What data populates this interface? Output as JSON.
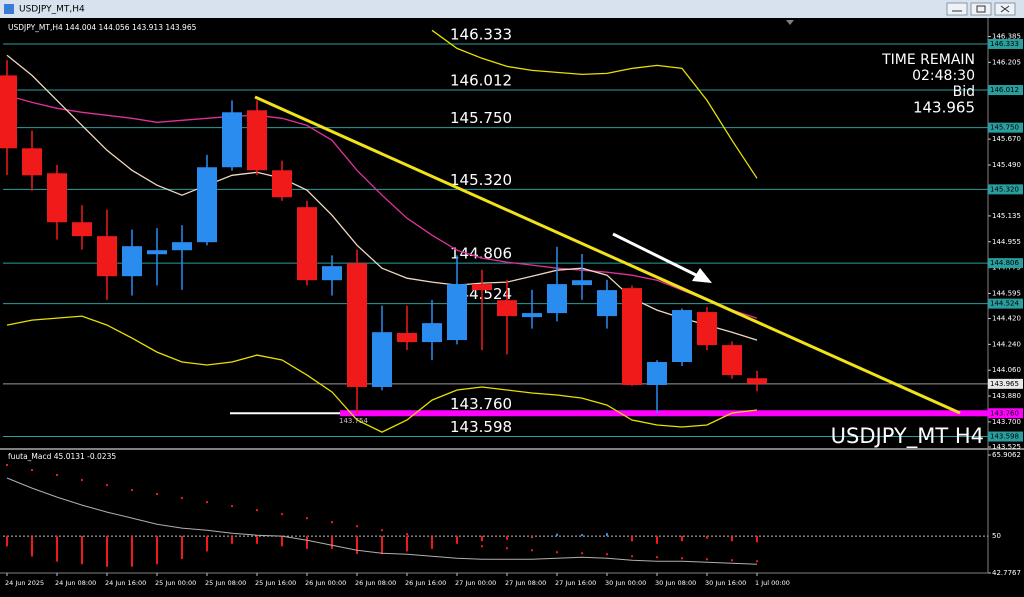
{
  "window_title": "USDJPY_MT,H4",
  "chart_data": [
    {
      "type": "candlestick",
      "title": "USDJPY_MT,H4 144.004 144.056 143.913 143.965",
      "categories": [
        "24 Jun 2025",
        null,
        "24 Jun 08:00",
        null,
        "24 Jun 16:00",
        null,
        "25 Jun 00:00",
        null,
        "25 Jun 08:00",
        null,
        "25 Jun 16:00",
        null,
        "26 Jun 00:00",
        null,
        "26 Jun 08:00",
        null,
        "26 Jun 16:00",
        null,
        "27 Jun 00:00",
        null,
        "27 Jun 08:00",
        null,
        "27 Jun 16:00",
        null,
        "30 Jun 00:00",
        null,
        "30 Jun 08:00",
        null,
        "30 Jun 16:00",
        null,
        "1 Jul 00:00"
      ],
      "open": [
        146.114,
        145.606,
        145.432,
        145.091,
        144.994,
        144.715,
        144.868,
        144.896,
        144.952,
        145.474,
        145.871,
        145.453,
        145.196,
        144.687,
        144.806,
        143.943,
        144.319,
        144.256,
        144.27,
        144.66,
        144.548,
        144.43,
        144.458,
        144.653,
        144.437,
        144.632,
        143.957,
        144.117,
        144.465,
        144.235,
        144.004
      ],
      "high": [
        146.22,
        145.73,
        145.49,
        145.21,
        145.18,
        145.04,
        145.05,
        145.07,
        145.56,
        145.94,
        145.94,
        145.52,
        145.24,
        144.86,
        144.9,
        144.51,
        144.51,
        144.55,
        144.86,
        144.76,
        144.69,
        144.62,
        144.92,
        144.87,
        144.69,
        144.65,
        144.13,
        144.49,
        144.5,
        144.26,
        144.056
      ],
      "low": [
        145.42,
        145.31,
        144.97,
        144.9,
        144.55,
        144.58,
        144.65,
        144.62,
        144.93,
        145.45,
        145.42,
        145.24,
        144.65,
        144.58,
        143.754,
        143.92,
        144.2,
        144.13,
        144.24,
        144.2,
        144.17,
        144.35,
        144.4,
        144.55,
        144.35,
        143.95,
        143.76,
        144.09,
        144.2,
        144.0,
        143.913
      ],
      "close": [
        145.606,
        145.418,
        145.091,
        144.994,
        144.715,
        144.924,
        144.896,
        144.952,
        145.474,
        145.857,
        145.453,
        145.265,
        144.687,
        144.785,
        143.943,
        144.325,
        144.256,
        144.388,
        144.66,
        144.618,
        144.437,
        144.458,
        144.66,
        144.687,
        144.618,
        143.957,
        144.117,
        144.479,
        144.235,
        144.026,
        143.965
      ],
      "up_color": "#2b8cf0",
      "down_color": "#f01a1a",
      "overlays": [
        {
          "color": "#e8e000",
          "values": [
            null,
            null,
            null,
            null,
            null,
            null,
            null,
            null,
            null,
            null,
            null,
            null,
            null,
            null,
            null,
            null,
            null,
            146.428,
            146.302,
            146.233,
            146.177,
            146.149,
            146.135,
            146.121,
            146.128,
            146.163,
            146.184,
            146.163,
            145.94,
            145.662,
            145.397
          ]
        },
        {
          "color": "#e8e000",
          "values": [
            144.374,
            144.409,
            144.423,
            144.437,
            144.374,
            144.284,
            144.186,
            144.117,
            144.096,
            144.117,
            144.165,
            144.131,
            144.026,
            143.908,
            143.713,
            143.629,
            143.713,
            143.852,
            143.922,
            143.943,
            143.922,
            143.901,
            143.887,
            143.866,
            143.817,
            143.713,
            143.678,
            143.664,
            143.678,
            143.762,
            143.783
          ]
        },
        {
          "color": "#e0309a",
          "values": [
            145.975,
            145.926,
            145.885,
            145.857,
            145.836,
            145.815,
            145.787,
            145.801,
            145.815,
            145.829,
            145.836,
            145.815,
            145.766,
            145.662,
            145.453,
            145.279,
            145.119,
            145.001,
            144.896,
            144.841,
            144.813,
            144.792,
            144.771,
            144.757,
            144.743,
            144.722,
            144.687,
            144.618,
            144.548,
            144.479,
            144.423
          ]
        },
        {
          "color": "#f0d8c0",
          "values": [
            146.254,
            146.114,
            145.94,
            145.766,
            145.592,
            145.453,
            145.349,
            145.279,
            145.349,
            145.418,
            145.439,
            145.397,
            145.314,
            145.14,
            144.931,
            144.771,
            144.701,
            144.674,
            144.653,
            144.667,
            144.674,
            144.715,
            144.757,
            144.771,
            144.722,
            144.562,
            144.479,
            144.423,
            144.374,
            144.325,
            144.27
          ]
        }
      ],
      "levels": [
        {
          "value": 146.333,
          "color": "#2a9e9e"
        },
        {
          "value": 146.012,
          "color": "#2a9e9e"
        },
        {
          "value": 145.75,
          "label": "145.750",
          "color": "#2a9e9e"
        },
        {
          "value": 145.32,
          "label": "145.320",
          "color": "#2a9e9e"
        },
        {
          "value": 144.806,
          "color": "#2a9e9e"
        },
        {
          "value": 144.524,
          "color": "#2a9e9e"
        },
        {
          "value": 143.76,
          "label": "143.760",
          "color": "#ff00ff"
        },
        {
          "value": 143.598,
          "color": "#2a9e9e"
        }
      ],
      "bid": 143.965,
      "bid_label": "Bid",
      "time_remain_label": "TIME REMAIN",
      "time_remain": "02:48:30",
      "watermark": "USDJPY_MT H4",
      "ylim": [
        143.525,
        146.5
      ],
      "yticks": [
        146.385,
        146.205,
        {
          "value": 145.67,
          "label": "145.670"
        },
        {
          "value": 145.49,
          "label": "145.490"
        },
        145.135,
        144.955,
        144.775,
        144.595,
        {
          "value": 144.42,
          "label": "144.420"
        },
        {
          "value": 144.24,
          "label": "144.240"
        },
        {
          "value": 144.06,
          "label": "144.060"
        },
        {
          "value": 143.88,
          "label": "143.880"
        },
        {
          "value": 143.7,
          "label": "143.700"
        },
        143.525
      ]
    },
    {
      "type": "macd",
      "title": "fuuta_Macd 45.0131 -0.0235",
      "histogram": [
        48,
        46,
        45,
        44.5,
        44,
        44,
        44.5,
        45.5,
        47,
        48.5,
        48.5,
        48,
        47.5,
        47.5,
        46.5,
        46.5,
        47,
        47.5,
        48.5,
        49,
        49.3,
        49.6,
        50.5,
        50.4,
        50.6,
        49,
        48.5,
        49,
        49.5,
        49,
        48.8
      ],
      "signal": [
        63.94,
        62.96,
        61.98,
        61.0,
        60.01,
        59.03,
        58.25,
        57.46,
        56.67,
        55.89,
        55.1,
        54.32,
        53.53,
        52.75,
        51.96,
        51.17,
        50.39,
        49.6,
        48.81,
        48.03,
        47.64,
        47.24,
        46.85,
        46.65,
        46.46,
        46.07,
        45.87,
        45.67,
        45.47,
        45.28,
        45.08
      ],
      "line": [
        61.39,
        59.42,
        57.65,
        56.08,
        54.71,
        53.53,
        52.35,
        51.57,
        51.17,
        50.58,
        50.19,
        50.0,
        49.21,
        48.23,
        47.24,
        46.65,
        46.46,
        46.07,
        45.67,
        45.47,
        45.47,
        45.47,
        45.67,
        45.87,
        45.67,
        45.28,
        45.08,
        45.08,
        44.89,
        44.69,
        44.49
      ],
      "up_color": "#2b8cf0",
      "down_color": "#f01a1a",
      "signal_color": "#f01a1a",
      "line_color": "#b0b0b0",
      "level": 50,
      "ylim": [
        42.7767,
        65.9062
      ],
      "yticks": [
        65.9062,
        42.7767
      ]
    }
  ]
}
